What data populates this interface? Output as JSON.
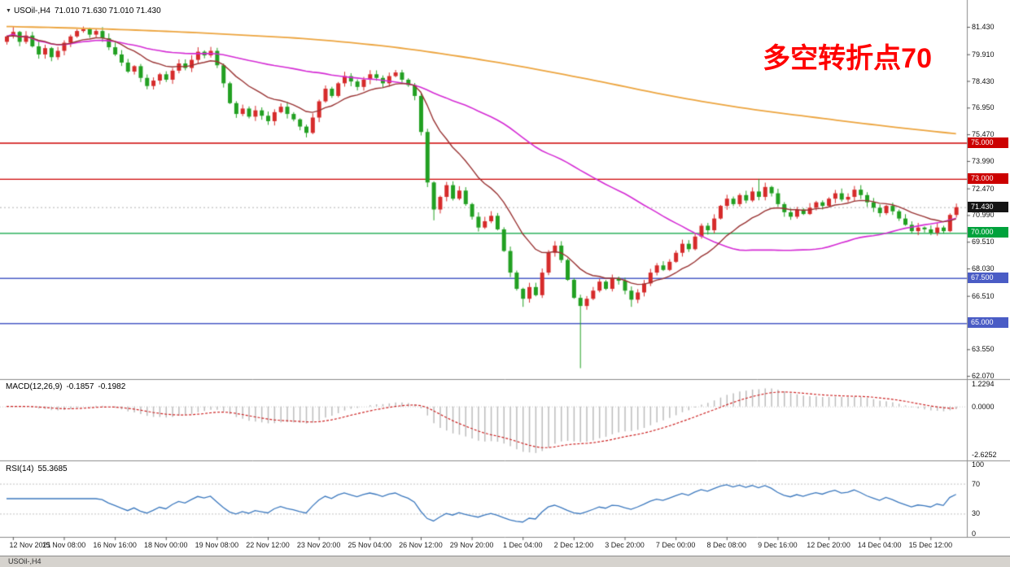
{
  "header": {
    "collapse_icon": "▼",
    "symbol": "USOil-,H4",
    "ohlc": "71.010 71.630 71.010 71.430"
  },
  "annotation": {
    "text": "多空转折点70",
    "color": "#ff0000"
  },
  "price_axis": {
    "ticks": [
      "81.430",
      "79.910",
      "78.430",
      "76.950",
      "75.470",
      "73.990",
      "72.470",
      "70.990",
      "69.510",
      "68.030",
      "66.510",
      "63.550",
      "62.070"
    ],
    "badges": [
      {
        "label": "75.000",
        "price": 75.0,
        "color": "#cc0000"
      },
      {
        "label": "73.000",
        "price": 73.0,
        "color": "#cc0000"
      },
      {
        "label": "71.430",
        "price": 71.43,
        "color": "#151515"
      },
      {
        "label": "70.000",
        "price": 70.0,
        "color": "#00a23c"
      },
      {
        "label": "67.500",
        "price": 67.5,
        "color": "#4a5cc5"
      },
      {
        "label": "65.000",
        "price": 65.0,
        "color": "#4a5cc5"
      }
    ]
  },
  "chart_data": {
    "type": "candlestick",
    "title": "USOil-,H4 71.010 71.630 71.010 71.430",
    "symbol": "USOil-",
    "timeframe": "H4",
    "y_range": [
      61.94,
      82.92
    ],
    "x_labels": [
      "12 Nov 2021",
      "15 Nov 08:00",
      "16 Nov 16:00",
      "18 Nov 00:00",
      "19 Nov 08:00",
      "22 Nov 12:00",
      "23 Nov 20:00",
      "25 Nov 04:00",
      "26 Nov 12:00",
      "29 Nov 20:00",
      "1 Dec 04:00",
      "2 Dec 12:00",
      "3 Dec 20:00",
      "7 Dec 00:00",
      "8 Dec 08:00",
      "9 Dec 16:00",
      "12 Dec 20:00",
      "14 Dec 04:00",
      "15 Dec 12:00"
    ],
    "up_color": "#d62b2b",
    "down_color": "#22a022",
    "first_open": 80.6,
    "closes": [
      80.9,
      81.15,
      80.6,
      80.95,
      80.35,
      79.9,
      80.25,
      79.75,
      80.1,
      80.55,
      80.9,
      81.2,
      81.3,
      81.0,
      81.2,
      80.8,
      80.3,
      79.9,
      79.45,
      78.95,
      79.25,
      78.6,
      78.15,
      78.45,
      78.8,
      78.5,
      79.0,
      79.4,
      79.15,
      79.6,
      80.05,
      79.85,
      80.1,
      79.3,
      78.3,
      77.2,
      76.6,
      76.9,
      76.45,
      76.8,
      76.5,
      76.2,
      76.7,
      77.0,
      76.6,
      76.3,
      75.9,
      75.55,
      76.4,
      77.3,
      78.0,
      77.6,
      78.3,
      78.7,
      78.4,
      78.1,
      78.5,
      78.8,
      78.6,
      78.3,
      78.7,
      78.9,
      78.5,
      78.2,
      77.6,
      75.6,
      72.8,
      71.3,
      72.0,
      72.65,
      71.9,
      72.35,
      71.6,
      70.9,
      70.3,
      70.65,
      70.95,
      70.2,
      69.0,
      67.8,
      66.9,
      66.35,
      67.0,
      66.55,
      67.8,
      68.9,
      69.3,
      68.5,
      67.4,
      66.4,
      65.95,
      66.35,
      66.8,
      67.3,
      66.9,
      67.5,
      67.35,
      66.8,
      66.3,
      66.7,
      67.2,
      67.8,
      68.2,
      67.95,
      68.4,
      68.9,
      69.4,
      69.1,
      69.8,
      70.4,
      70.15,
      70.8,
      71.5,
      71.9,
      71.6,
      72.1,
      71.8,
      72.3,
      72.0,
      72.55,
      72.2,
      71.6,
      71.15,
      70.9,
      71.3,
      71.05,
      71.4,
      71.7,
      71.5,
      71.9,
      72.2,
      71.85,
      72.0,
      72.4,
      72.1,
      71.7,
      71.4,
      71.1,
      71.5,
      71.2,
      70.8,
      70.45,
      70.1,
      70.3,
      70.2,
      70.0,
      70.3,
      70.1,
      71.0,
      71.43
    ],
    "wick_overrides": {
      "1": {
        "high": 81.45
      },
      "12": {
        "high": 81.45
      },
      "30": {
        "high": 80.3
      },
      "47": {
        "low": 75.3
      },
      "67": {
        "low": 70.7
      },
      "81": {
        "low": 65.9
      },
      "90": {
        "low": 62.5
      },
      "98": {
        "low": 65.9
      },
      "118": {
        "high": 73.0
      },
      "149": {
        "high": 71.63,
        "low": 70.85
      }
    },
    "moving_averages": [
      {
        "name": "fast-ma",
        "period": 13,
        "color": "#993333"
      },
      {
        "name": "mid-ma",
        "period": 50,
        "color": "#d42bd4"
      },
      {
        "name": "slow-ma",
        "color": "#eca43e",
        "anchors": [
          [
            0,
            81.45
          ],
          [
            0.08,
            81.35
          ],
          [
            0.16,
            81.2
          ],
          [
            0.24,
            81.0
          ],
          [
            0.32,
            80.75
          ],
          [
            0.4,
            80.35
          ],
          [
            0.47,
            79.85
          ],
          [
            0.54,
            79.25
          ],
          [
            0.62,
            78.45
          ],
          [
            0.7,
            77.6
          ],
          [
            0.78,
            76.9
          ],
          [
            0.86,
            76.35
          ],
          [
            0.93,
            75.9
          ],
          [
            1.0,
            75.5
          ]
        ]
      }
    ],
    "hlines": [
      {
        "price": 75.0,
        "color": "#cc0000",
        "label": "75.000"
      },
      {
        "price": 73.0,
        "color": "#cc0000",
        "label": "73.000"
      },
      {
        "price": 70.0,
        "color": "#00a23c",
        "label": "70.000"
      },
      {
        "price": 67.5,
        "color": "#4a5cc5",
        "label": "67.500"
      },
      {
        "price": 65.0,
        "color": "#4a5cc5",
        "label": "65.000"
      }
    ],
    "current_price": {
      "value": 71.43,
      "label": "71.430",
      "line_color": "#b0b0b0",
      "badge_color": "#151515"
    },
    "indicators": [
      {
        "type": "macd",
        "label": "MACD(12,26,9)",
        "value_main": "-0.1857",
        "value_signal": "-0.1982",
        "axis_labels": [
          "1.2294",
          "0.0000",
          "-2.6252"
        ],
        "y_range": [
          -2.9,
          1.45
        ],
        "hist_color": "#bcbcbc",
        "signal_color": "#cc2222"
      },
      {
        "type": "rsi",
        "label": "RSI(14)",
        "value": "55.3685",
        "axis_labels": [
          "100",
          "70",
          "30",
          "0"
        ],
        "levels": [
          70,
          30
        ],
        "y_range": [
          0,
          100
        ],
        "color": "#3b78be",
        "level_color": "#c0c0c0"
      }
    ]
  },
  "bottom_bar": {
    "text": "USOil-,H4"
  }
}
